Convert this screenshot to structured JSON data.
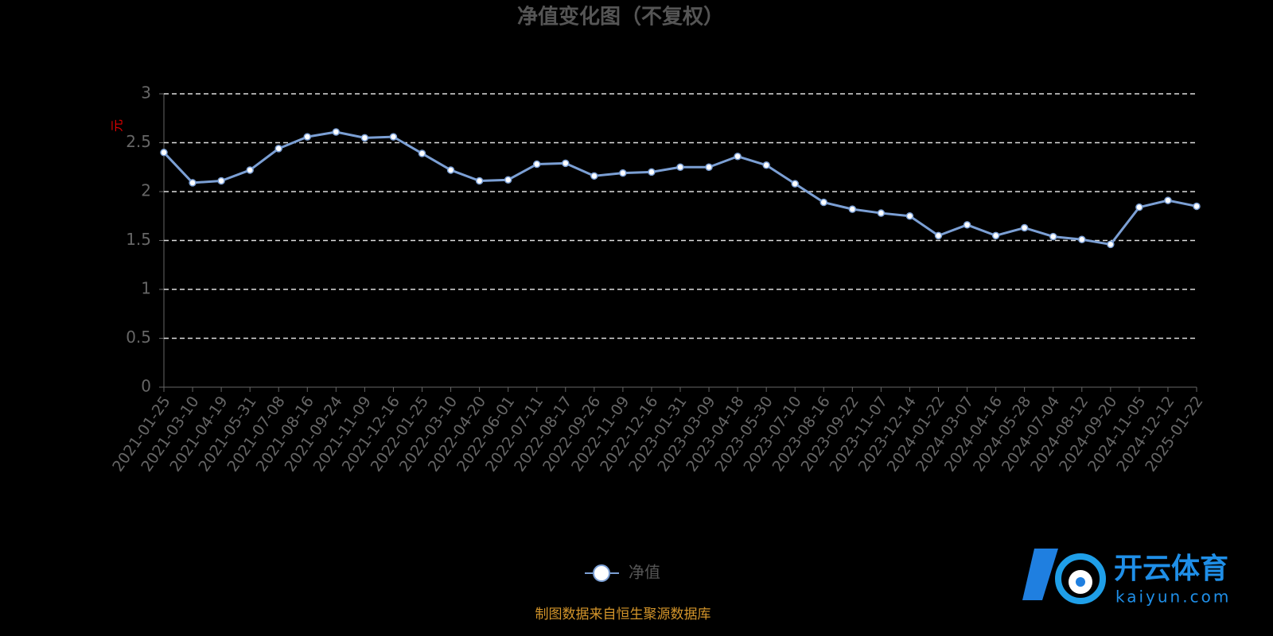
{
  "chart_data": {
    "type": "line",
    "title": "净值变化图（不复权）",
    "y_label": "元",
    "categories": [
      "2021-01-25",
      "2021-03-10",
      "2021-04-19",
      "2021-05-31",
      "2021-07-08",
      "2021-08-16",
      "2021-09-24",
      "2021-11-09",
      "2021-12-16",
      "2022-01-25",
      "2022-03-10",
      "2022-04-20",
      "2022-06-01",
      "2022-07-11",
      "2022-08-17",
      "2022-09-26",
      "2022-11-09",
      "2022-12-16",
      "2023-01-31",
      "2023-03-09",
      "2023-04-18",
      "2023-05-30",
      "2023-07-10",
      "2023-08-16",
      "2023-09-22",
      "2023-11-07",
      "2023-12-14",
      "2024-01-22",
      "2024-03-07",
      "2024-04-16",
      "2024-05-28",
      "2024-07-04",
      "2024-08-12",
      "2024-09-20",
      "2024-11-05",
      "2024-12-12",
      "2025-01-22"
    ],
    "series": [
      {
        "name": "净值",
        "color": "#7b9fd4",
        "values": [
          2.4,
          2.09,
          2.11,
          2.22,
          2.44,
          2.56,
          2.61,
          2.55,
          2.56,
          2.39,
          2.22,
          2.11,
          2.12,
          2.28,
          2.29,
          2.16,
          2.19,
          2.2,
          2.25,
          2.25,
          2.36,
          2.27,
          2.08,
          1.89,
          1.82,
          1.78,
          1.75,
          1.55,
          1.66,
          1.55,
          1.63,
          1.54,
          1.51,
          1.46,
          1.84,
          1.91,
          1.85
        ]
      }
    ],
    "ylim": [
      0,
      3
    ],
    "yticks": [
      0,
      0.5,
      1,
      1.5,
      2,
      2.5,
      3
    ],
    "grid": true,
    "source": "制图数据来自恒生聚源数据库"
  },
  "watermark": {
    "name": "开云体育",
    "url": "kaiyun.com"
  }
}
